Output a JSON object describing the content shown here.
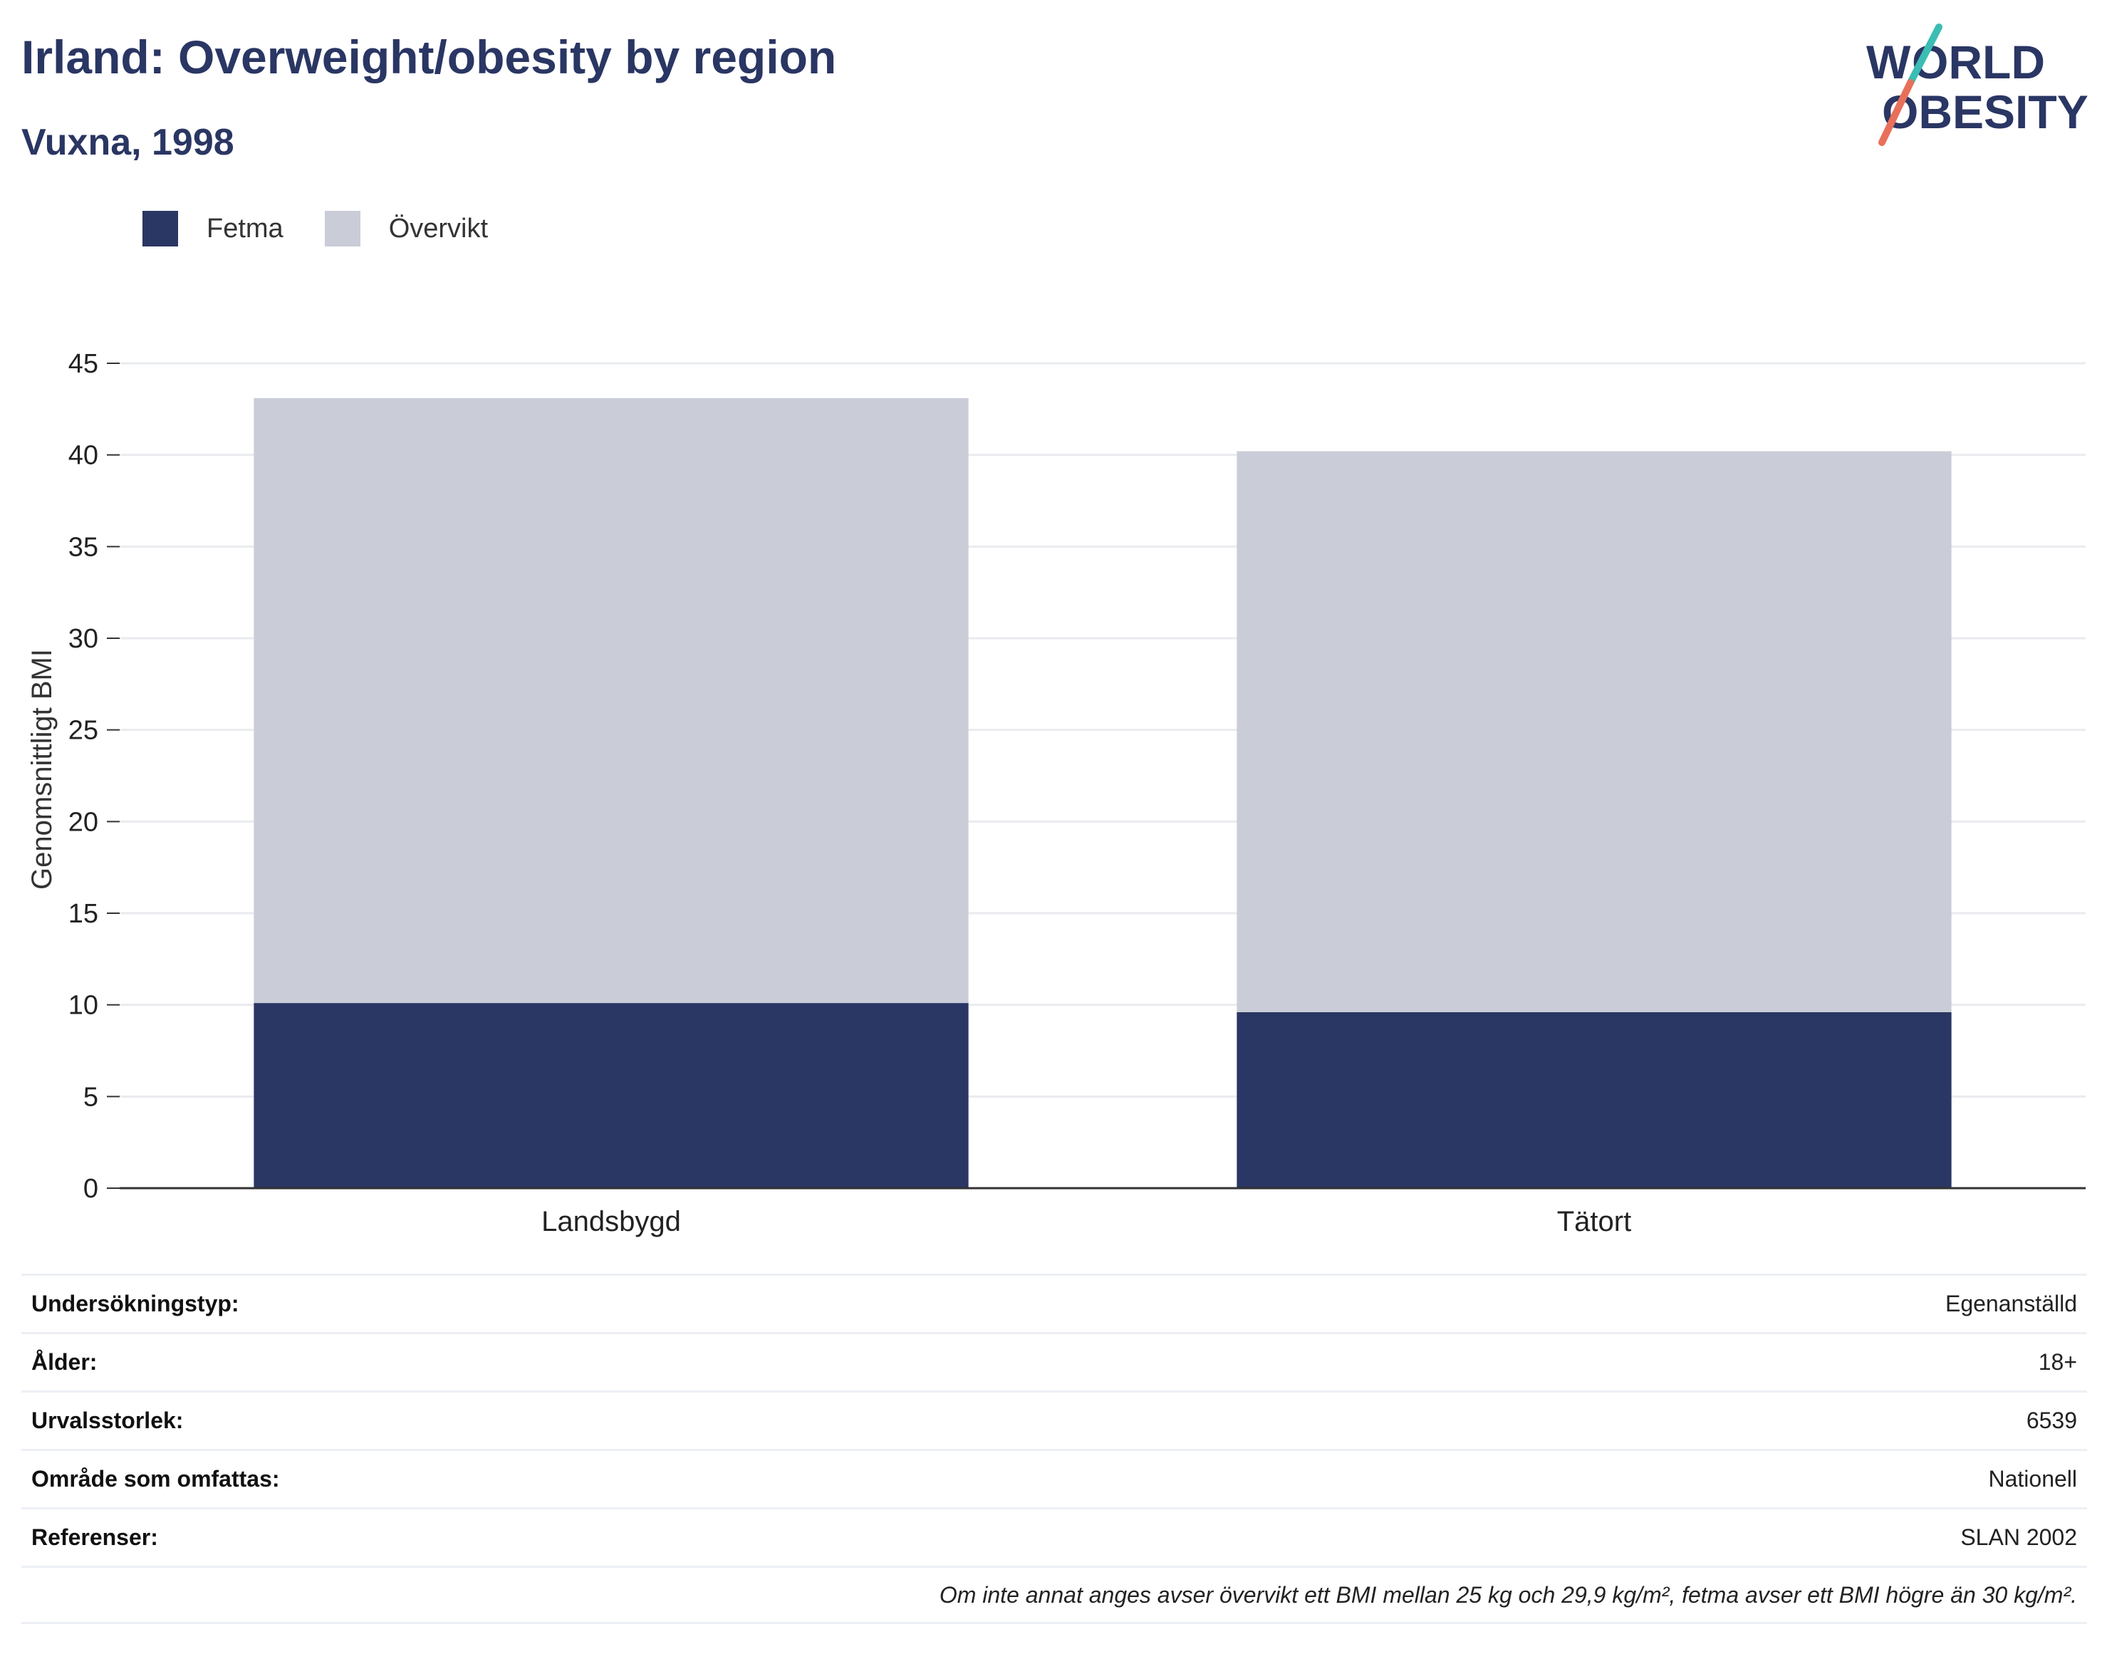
{
  "header": {
    "title": "Irland: Overweight/obesity by region",
    "subtitle": "Vuxna, 1998",
    "logo_text": "WORLD OBESITY"
  },
  "legend": {
    "items": [
      {
        "label": "Fetma",
        "color": "#2a3663"
      },
      {
        "label": "Övervikt",
        "color": "#cacdd8"
      }
    ]
  },
  "chart_data": {
    "type": "bar",
    "stacked": true,
    "categories": [
      "Landsbygd",
      "Tätort"
    ],
    "series": [
      {
        "name": "Fetma",
        "values": [
          10.1,
          9.6
        ],
        "color": "#2a3663"
      },
      {
        "name": "Övervikt",
        "values": [
          33.0,
          30.6
        ],
        "color": "#cacdd8"
      }
    ],
    "ylabel": "Genomsnittligt BMI",
    "xlabel": "",
    "ylim": [
      0,
      45
    ],
    "yticks": [
      0,
      5,
      10,
      15,
      20,
      25,
      30,
      35,
      40,
      45
    ],
    "grid": true,
    "legend_position": "top-left"
  },
  "info": {
    "rows": [
      {
        "key": "Undersökningstyp:",
        "value": "Egenanställd"
      },
      {
        "key": "Ålder:",
        "value": "18+"
      },
      {
        "key": "Urvalsstorlek:",
        "value": "6539"
      },
      {
        "key": "Område som omfattas:",
        "value": "Nationell"
      },
      {
        "key": "Referenser:",
        "value": "SLAN 2002"
      }
    ],
    "note": "Om inte annat anges avser övervikt ett BMI mellan 25 kg och 29,9 kg/m², fetma avser ett BMI högre än 30 kg/m²."
  }
}
